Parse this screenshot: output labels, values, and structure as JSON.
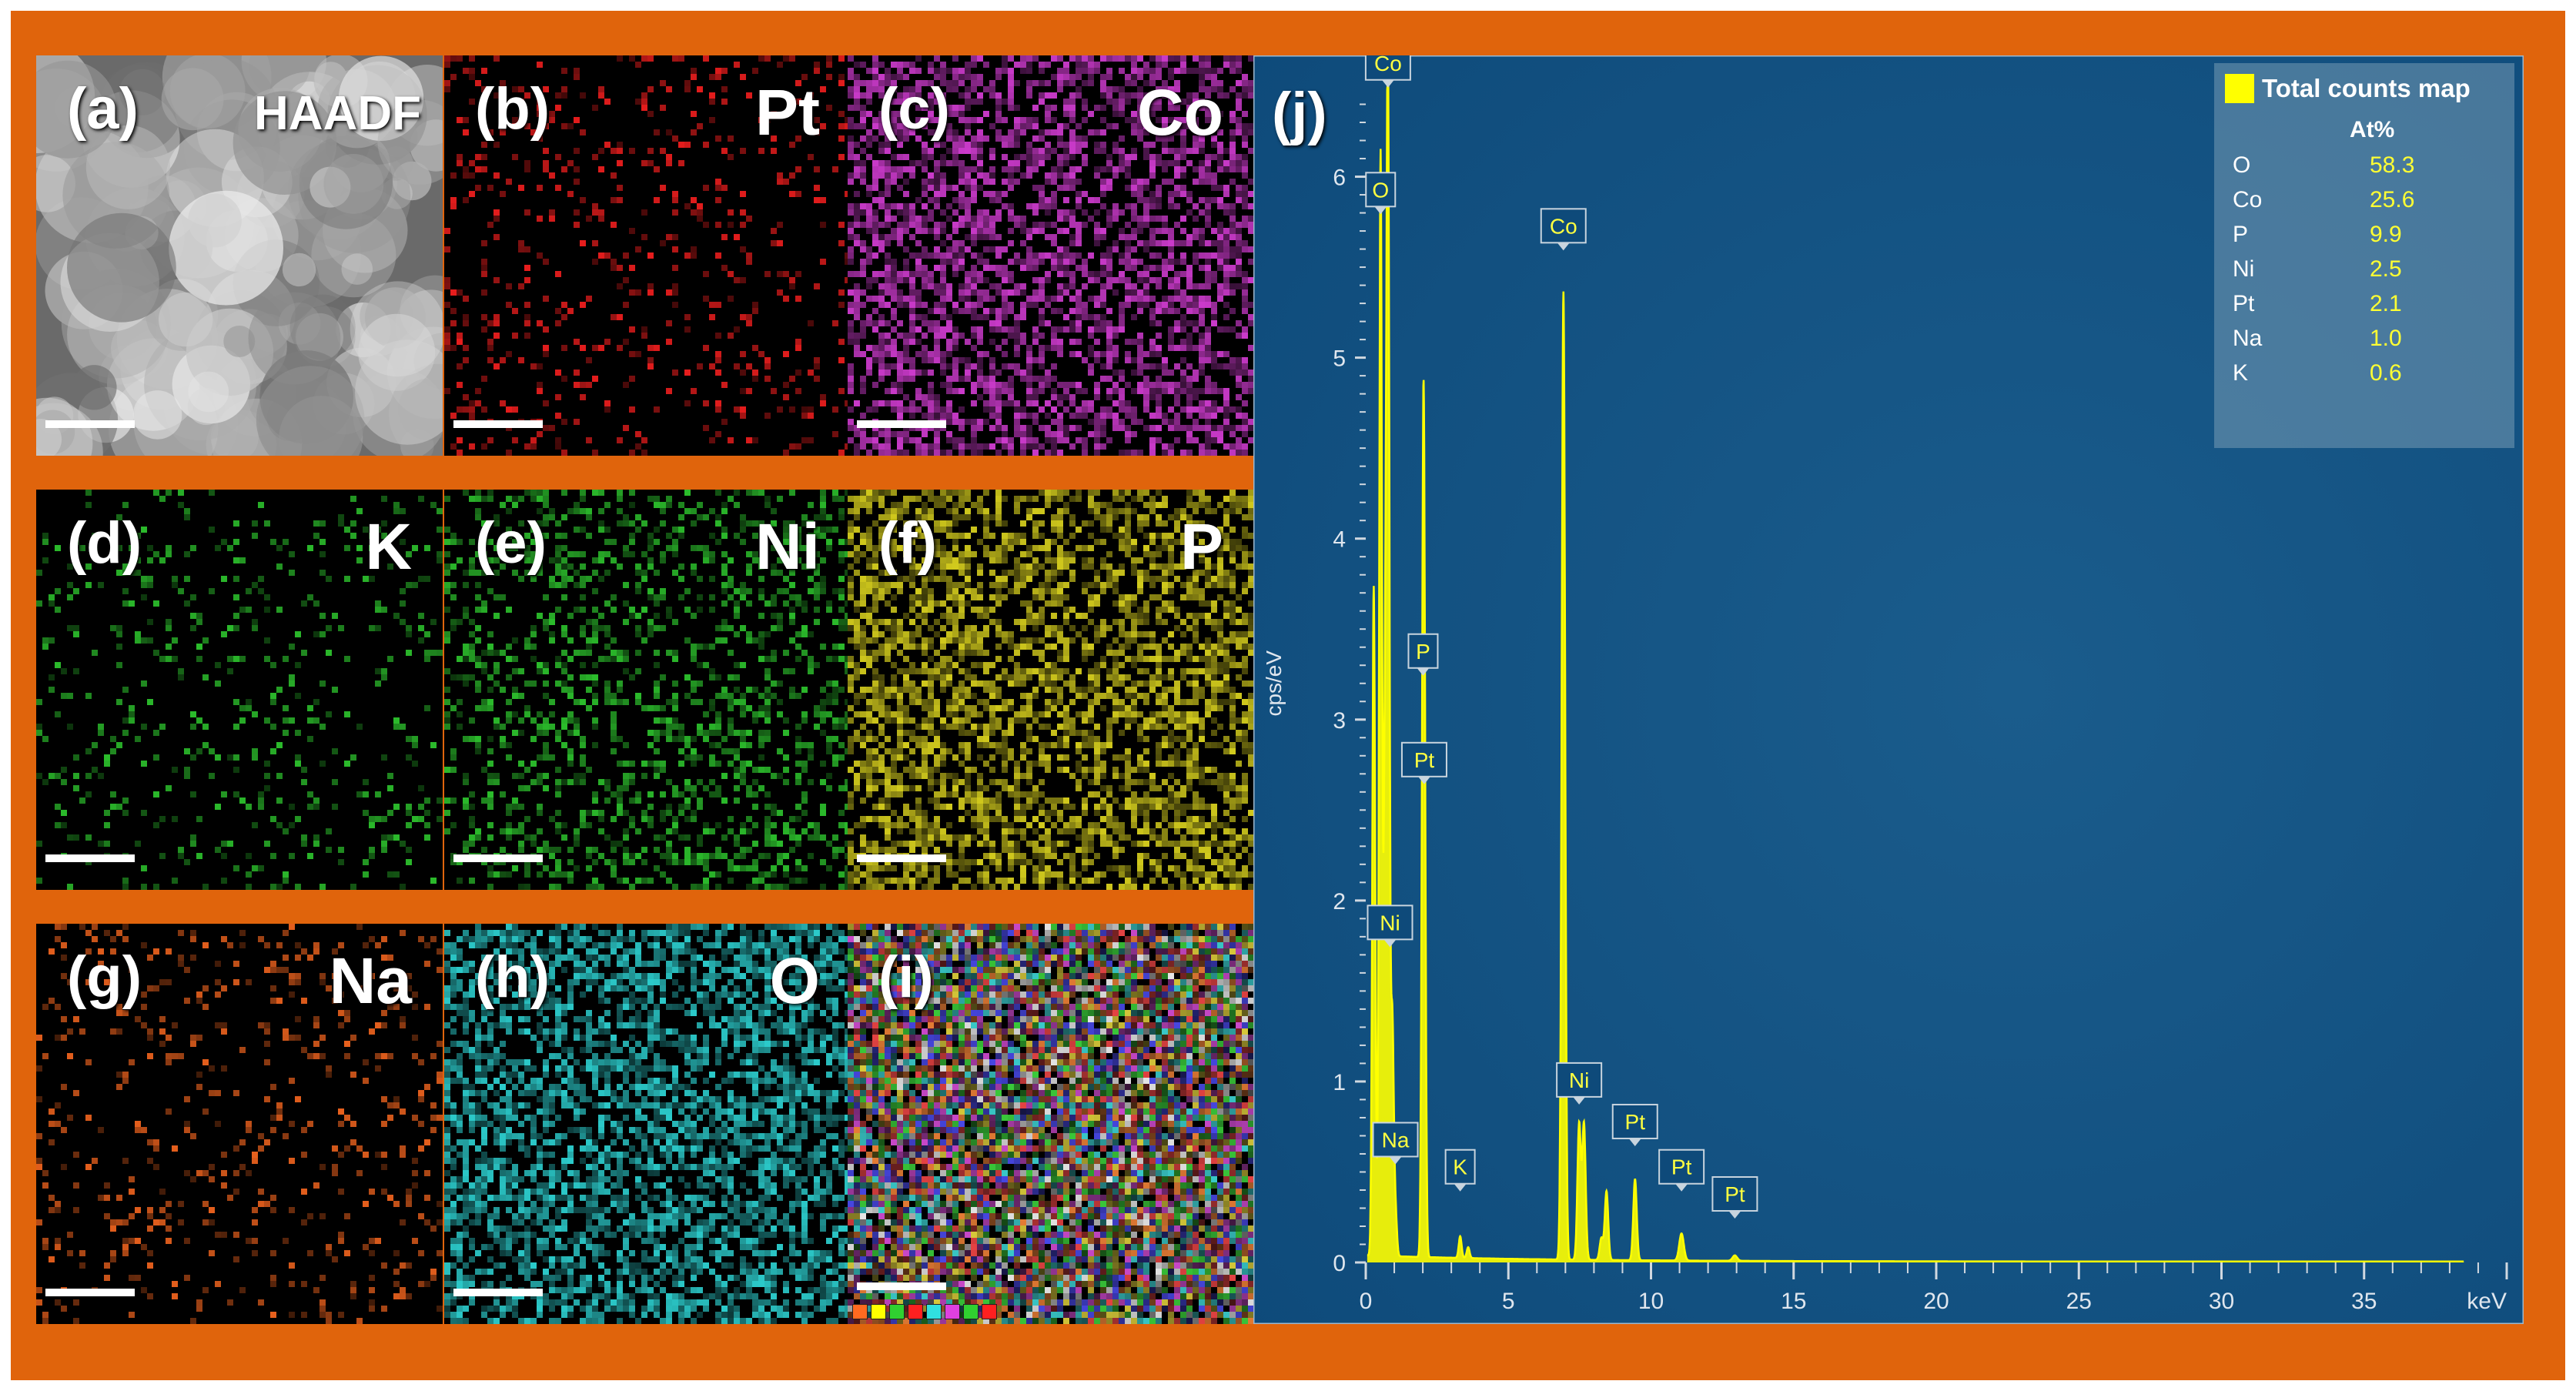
{
  "panels": [
    {
      "id": "a",
      "label": "(a)",
      "element": "HAADF",
      "color": "#c8c8c8",
      "mode": "haadf"
    },
    {
      "id": "b",
      "label": "(b)",
      "element": "Pt",
      "color": "#ff2020",
      "mode": "sparse"
    },
    {
      "id": "c",
      "label": "(c)",
      "element": "Co",
      "color": "#e040e0",
      "mode": "dense"
    },
    {
      "id": "d",
      "label": "(d)",
      "element": "K",
      "color": "#30d030",
      "mode": "sparse"
    },
    {
      "id": "e",
      "label": "(e)",
      "element": "Ni",
      "color": "#30d030",
      "mode": "medium"
    },
    {
      "id": "f",
      "label": "(f)",
      "element": "P",
      "color": "#e8e020",
      "mode": "dense"
    },
    {
      "id": "g",
      "label": "(g)",
      "element": "Na",
      "color": "#ff6a20",
      "mode": "sparse"
    },
    {
      "id": "h",
      "label": "(h)",
      "element": "O",
      "color": "#30e0e0",
      "mode": "dense"
    },
    {
      "id": "i",
      "label": "(i)",
      "element": "",
      "color": "#ffffff",
      "mode": "overlay"
    }
  ],
  "overlay_swatch_colors": [
    "#ff6a20",
    "#ffff00",
    "#30d030",
    "#ff2020",
    "#30e0e0",
    "#e040e0",
    "#30d030",
    "#ff2020"
  ],
  "chart_data": {
    "type": "line",
    "panel_label": "(j)",
    "xlabel": "keV",
    "ylabel": "cps/eV",
    "xlim": [
      0,
      40
    ],
    "ylim": [
      0,
      6.5
    ],
    "xticks": [
      0,
      5,
      10,
      15,
      20,
      25,
      30,
      35
    ],
    "yticks": [
      0,
      1,
      2,
      3,
      4,
      5,
      6
    ],
    "background": "#0e4a7a",
    "line_color": "#ffff00",
    "series": [
      {
        "name": "Total counts map",
        "peaks": [
          {
            "x": 0.28,
            "y": 3.7,
            "w": 0.05
          },
          {
            "x": 0.52,
            "y": 6.1,
            "w": 0.05
          },
          {
            "x": 0.68,
            "y": 2.8,
            "w": 0.05
          },
          {
            "x": 0.78,
            "y": 6.45,
            "w": 0.05
          },
          {
            "x": 0.93,
            "y": 1.3,
            "w": 0.05
          },
          {
            "x": 1.04,
            "y": 0.25,
            "w": 0.05
          },
          {
            "x": 2.01,
            "y": 2.95,
            "w": 0.05
          },
          {
            "x": 2.05,
            "y": 2.3,
            "w": 0.05
          },
          {
            "x": 3.31,
            "y": 0.12,
            "w": 0.05
          },
          {
            "x": 3.59,
            "y": 0.06,
            "w": 0.05
          },
          {
            "x": 6.93,
            "y": 5.35,
            "w": 0.06
          },
          {
            "x": 7.48,
            "y": 0.75,
            "w": 0.06
          },
          {
            "x": 7.65,
            "y": 0.75,
            "w": 0.06
          },
          {
            "x": 8.26,
            "y": 0.12,
            "w": 0.06
          },
          {
            "x": 8.44,
            "y": 0.38,
            "w": 0.06
          },
          {
            "x": 9.44,
            "y": 0.45,
            "w": 0.06
          },
          {
            "x": 11.07,
            "y": 0.15,
            "w": 0.08
          },
          {
            "x": 12.94,
            "y": 0.03,
            "w": 0.08
          }
        ]
      }
    ],
    "peak_labels": [
      {
        "text": "Co",
        "x": 0.78,
        "y": 6.45
      },
      {
        "text": "O",
        "x": 0.52,
        "y": 5.75
      },
      {
        "text": "Co",
        "x": 6.93,
        "y": 5.55
      },
      {
        "text": "P",
        "x": 2.01,
        "y": 3.2
      },
      {
        "text": "Pt",
        "x": 2.05,
        "y": 2.6
      },
      {
        "text": "Ni",
        "x": 0.85,
        "y": 1.7
      },
      {
        "text": "Ni",
        "x": 7.48,
        "y": 0.83
      },
      {
        "text": "Na",
        "x": 1.04,
        "y": 0.5
      },
      {
        "text": "K",
        "x": 3.31,
        "y": 0.35
      },
      {
        "text": "Pt",
        "x": 9.44,
        "y": 0.6
      },
      {
        "text": "Pt",
        "x": 11.07,
        "y": 0.35
      },
      {
        "text": "Pt",
        "x": 12.94,
        "y": 0.2
      }
    ],
    "legend": {
      "title": "Total counts map",
      "column_header": "At%",
      "placement": "top-right",
      "rows": [
        {
          "element": "O",
          "value": "58.3"
        },
        {
          "element": "Co",
          "value": "25.6"
        },
        {
          "element": "P",
          "value": "9.9"
        },
        {
          "element": "Ni",
          "value": "2.5"
        },
        {
          "element": "Pt",
          "value": "2.1"
        },
        {
          "element": "Na",
          "value": "1.0"
        },
        {
          "element": "K",
          "value": "0.6"
        }
      ]
    }
  }
}
